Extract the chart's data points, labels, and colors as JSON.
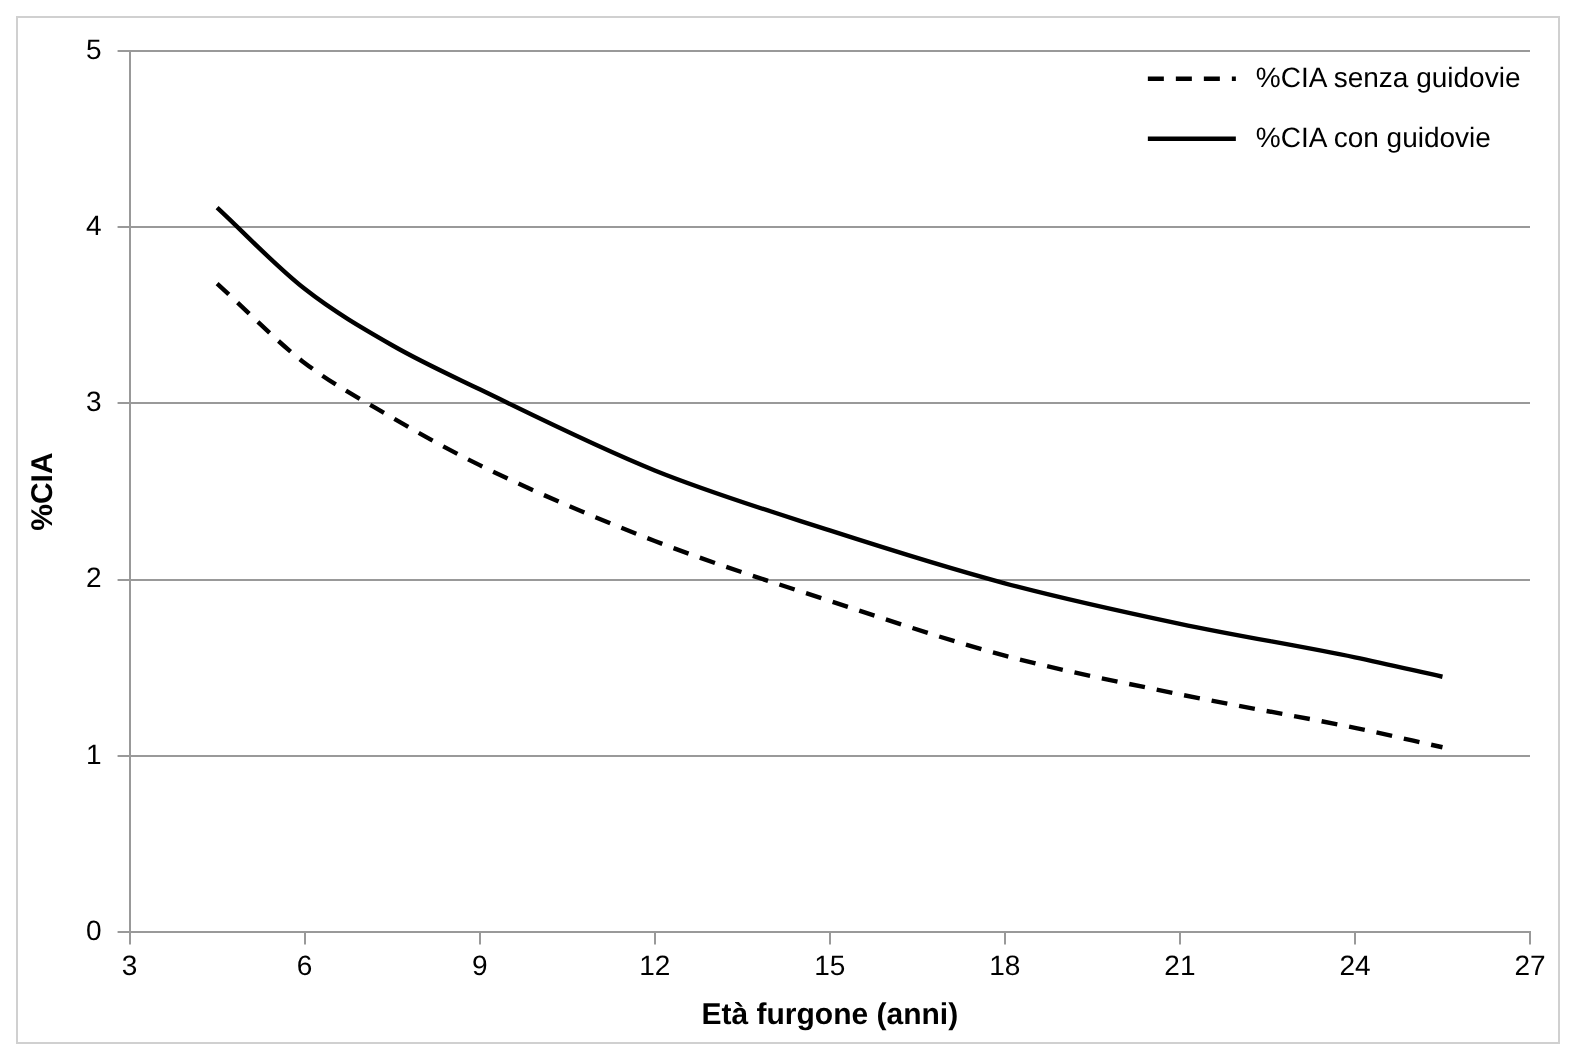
{
  "chart_data": {
    "type": "line",
    "xlabel": "Età furgone (anni)",
    "ylabel": "%CIA",
    "xlim": [
      3,
      27
    ],
    "xticks": [
      3,
      6,
      9,
      12,
      15,
      18,
      21,
      24,
      27
    ],
    "ylim": [
      0,
      5
    ],
    "yticks": [
      0,
      1,
      2,
      3,
      4,
      5
    ],
    "grid": "y",
    "legend": "top right",
    "marker": "none",
    "series": [
      {
        "name": "%CIA senza guidovie",
        "color": "#000000",
        "line_style": "dashed",
        "x": [
          4.5,
          6,
          7.5,
          9,
          12,
          15,
          18,
          21,
          24,
          25.5
        ],
        "values": [
          3.68,
          3.23,
          2.92,
          2.65,
          2.22,
          1.88,
          1.57,
          1.35,
          1.16,
          1.05
        ]
      },
      {
        "name": "%CIA con guidovie",
        "color": "#000000",
        "line_style": "solid",
        "x": [
          4.5,
          6,
          7.5,
          9,
          12,
          15,
          18,
          21,
          24,
          25.5
        ],
        "values": [
          4.11,
          3.65,
          3.33,
          3.08,
          2.62,
          2.28,
          1.98,
          1.75,
          1.56,
          1.45
        ]
      }
    ]
  }
}
